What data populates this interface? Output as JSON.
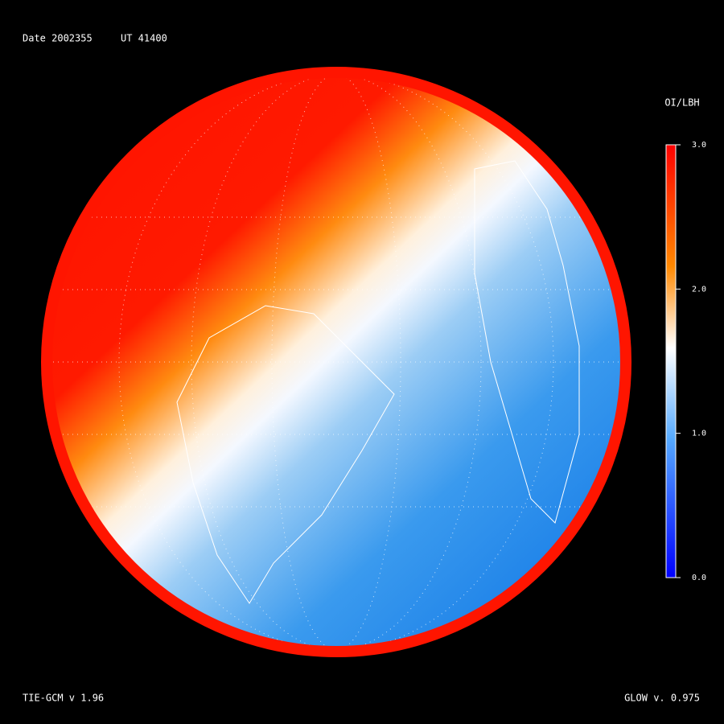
{
  "header": {
    "date": "Date 2002355",
    "ut": "UT 41400"
  },
  "colorbar": {
    "title": "OI/LBH",
    "range": [
      0,
      3
    ],
    "ticks": [
      {
        "value": 3,
        "label": "3.0"
      },
      {
        "value": 2,
        "label": "2.0"
      },
      {
        "value": 1,
        "label": "1.0"
      },
      {
        "value": 0,
        "label": "0.0"
      }
    ]
  },
  "footer": {
    "left": "TIE-GCM v 1.96",
    "right": "GLOW v. 0.975"
  }
}
